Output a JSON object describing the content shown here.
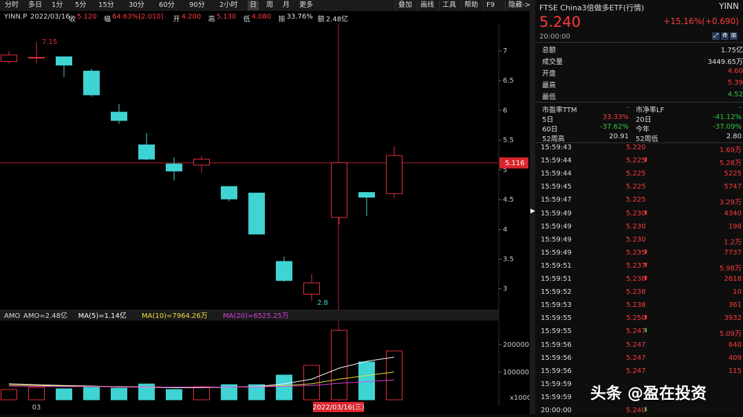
{
  "toolbar": {
    "periods": [
      "分时",
      "多日",
      "1分",
      "5分",
      "15分",
      "30分",
      "60分",
      "90分",
      "2小时",
      "日",
      "周",
      "月",
      "更多"
    ],
    "selected": "日",
    "tools": [
      "叠加",
      "画线",
      "工具",
      "帮助",
      "F9",
      "隐藏->"
    ]
  },
  "info_bar": {
    "symbol": "YINN.P",
    "date": "2022/03/16",
    "items": [
      {
        "label": "收",
        "value": "5.120",
        "color": "#ff3b3b"
      },
      {
        "label": "幅",
        "value": "64.63%[2.010]",
        "color": "#ff3b3b"
      },
      {
        "label": "开",
        "value": "4.200",
        "color": "#ff3b3b"
      },
      {
        "label": "高",
        "value": "5.130",
        "color": "#ff3b3b"
      },
      {
        "label": "低",
        "value": "4.080",
        "color": "#ff3b3b"
      },
      {
        "label": "振",
        "value": "33.76%",
        "color": "#e0e0e0"
      },
      {
        "label": "额",
        "value": "2.48亿",
        "color": "#e0e0e0"
      }
    ]
  },
  "chart_data": [
    {
      "type": "candlestick",
      "categories": [
        null,
        "03",
        null,
        null,
        null,
        null,
        null,
        null,
        null,
        null,
        null,
        null,
        null,
        null,
        null
      ],
      "open": [
        6.82,
        6.88,
        6.9,
        6.66,
        5.97,
        5.42,
        5.1,
        5.08,
        4.72,
        4.61,
        3.46,
        2.91,
        4.2,
        4.62,
        4.6
      ],
      "high": [
        7.0,
        7.15,
        6.9,
        6.7,
        6.11,
        5.62,
        5.21,
        5.23,
        4.72,
        4.61,
        3.54,
        3.25,
        5.13,
        4.62,
        5.39
      ],
      "low": [
        6.79,
        6.79,
        6.56,
        6.23,
        5.77,
        5.16,
        4.82,
        4.95,
        4.47,
        3.92,
        3.12,
        2.8,
        4.08,
        4.22,
        4.52
      ],
      "close": [
        6.93,
        6.89,
        6.76,
        6.26,
        5.83,
        5.18,
        4.98,
        5.18,
        4.51,
        3.92,
        3.14,
        3.1,
        5.12,
        4.54,
        5.24
      ],
      "up_color": "#e8313b",
      "down_color": "#3fd3d3",
      "ylim": [
        2.65,
        7.45
      ],
      "yticks": [
        3,
        3.5,
        4,
        4.5,
        5,
        5.5,
        6,
        6.5,
        7
      ],
      "max_label": 7.15,
      "min_label": 2.8,
      "crosshair_value": 5.116,
      "crosshair_date": "2022/03/16(三)"
    },
    {
      "type": "bar",
      "title": "AMO",
      "unit": "x1000",
      "ylim": [
        0,
        290000
      ],
      "yticks": [
        100000,
        200000
      ],
      "series": [
        {
          "name": "AMO=2.48亿",
          "values": [
            37500,
            45000,
            40000,
            45000,
            42500,
            57500,
            37500,
            47500,
            55000,
            55000,
            90000,
            125000,
            252500,
            137500,
            177500
          ]
        },
        {
          "name": "MA(5)=1.14亿",
          "color": "#ffffff",
          "values": [
            58000,
            55000,
            52000,
            50000,
            47000,
            46000,
            44000,
            44000,
            46000,
            48000,
            58000,
            75000,
            115000,
            140000,
            155000
          ]
        },
        {
          "name": "MA(10)=7964.26万",
          "color": "#f0e040",
          "values": [
            54000,
            52000,
            50000,
            49000,
            48000,
            47000,
            46000,
            46000,
            46000,
            47000,
            52000,
            58000,
            75000,
            88000,
            101000
          ]
        },
        {
          "name": "MA(20)=6525.25万",
          "color": "#e040e0",
          "values": [
            50000,
            49000,
            48000,
            48000,
            47000,
            47000,
            46000,
            46000,
            46000,
            47000,
            49000,
            52000,
            60000,
            66000,
            72000
          ]
        }
      ]
    }
  ],
  "quote": {
    "name": "FTSE China3倍做多ETF(行情)",
    "code": "YINN",
    "price": "5.240",
    "change": "+15.16%(+0.690)",
    "time": "20:00:00",
    "stats": [
      {
        "label": "总额",
        "value": "1.75亿",
        "color": "#e0e0e0"
      },
      {
        "label": "成交量",
        "value": "3449.65万",
        "color": "#e0e0e0"
      },
      {
        "label": "开盘",
        "value": "4.60",
        "color": "#ff3b3b"
      },
      {
        "label": "最高",
        "value": "5.39",
        "color": "#ff3b3b"
      },
      {
        "label": "最低",
        "value": "4.52",
        "color": "#2ecc40"
      }
    ],
    "ratios": [
      [
        {
          "label": "市盈率TTM",
          "value": "-"
        },
        {
          "label": "市净率LF",
          "value": "-"
        }
      ],
      [
        {
          "label": "5日",
          "value": "33.33%"
        },
        {
          "label": "20日",
          "value": "-41.12%"
        }
      ],
      [
        {
          "label": "60日",
          "value": "-37.62%"
        },
        {
          "label": "今年",
          "value": "-37.09%"
        }
      ],
      [
        {
          "label": "52周高",
          "value": "20.91"
        },
        {
          "label": "52周低",
          "value": "2.80"
        }
      ]
    ],
    "trades": [
      {
        "time": "15:59:43",
        "price": "5.220",
        "volume": "1.69万"
      },
      {
        "time": "15:59:44",
        "price": "5.225",
        "volume": "5.28万",
        "dir": "up"
      },
      {
        "time": "15:59:44",
        "price": "5.225",
        "volume": "5225"
      },
      {
        "time": "15:59:45",
        "price": "5.225",
        "volume": "5747"
      },
      {
        "time": "15:59:47",
        "price": "5.225",
        "volume": "3.29万"
      },
      {
        "time": "15:59:49",
        "price": "5.230",
        "volume": "4340",
        "dir": "up"
      },
      {
        "time": "15:59:49",
        "price": "5.230",
        "volume": "198"
      },
      {
        "time": "15:59:49",
        "price": "5.230",
        "volume": "1.2万"
      },
      {
        "time": "15:59:49",
        "price": "5.235",
        "volume": "7737",
        "dir": "up"
      },
      {
        "time": "15:59:51",
        "price": "5.237",
        "volume": "5.98万",
        "dir": "up"
      },
      {
        "time": "15:59:51",
        "price": "5.238",
        "volume": "2618",
        "dir": "up"
      },
      {
        "time": "15:59:52",
        "price": "5.238",
        "volume": "10"
      },
      {
        "time": "15:59:53",
        "price": "5.238",
        "volume": "361"
      },
      {
        "time": "15:59:55",
        "price": "5.250",
        "volume": "3932",
        "dir": "up"
      },
      {
        "time": "15:59:55",
        "price": "5.247",
        "volume": "5.09万",
        "dir": "down"
      },
      {
        "time": "15:59:56",
        "price": "5.247",
        "volume": "640"
      },
      {
        "time": "15:59:56",
        "price": "5.247",
        "volume": "409"
      },
      {
        "time": "15:59:56",
        "price": "5.247",
        "volume": "115"
      },
      {
        "time": "15:59:59"
      },
      {
        "time": "15:59:59"
      },
      {
        "time": "20:00:00",
        "price": "5.240",
        "dir": "down"
      }
    ]
  },
  "watermark": "头条 @盈在投资"
}
